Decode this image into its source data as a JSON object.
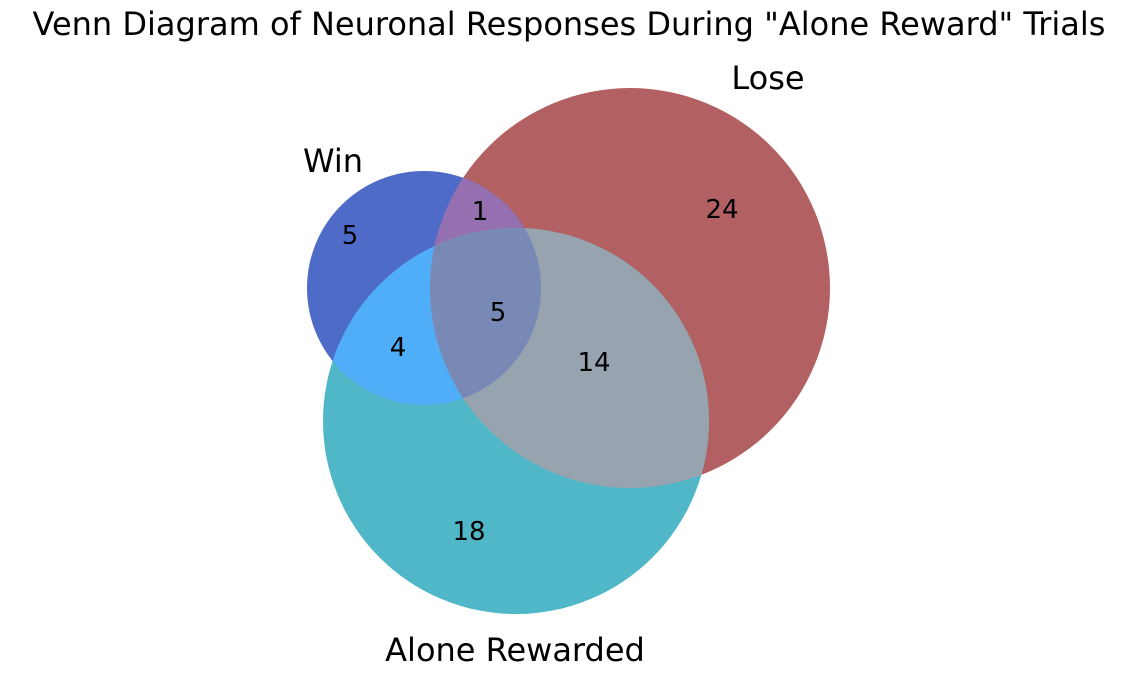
{
  "title": "Venn Diagram of Neuronal Responses During \"Alone Reward\" Trials",
  "sets": {
    "win": {
      "label": "Win",
      "color": "#4f6bc8"
    },
    "lose": {
      "label": "Lose",
      "color": "#b26061"
    },
    "alone": {
      "label": "Alone Rewarded",
      "color": "#50b7c8"
    }
  },
  "region_colors": {
    "win_lose": "#9570b0",
    "win_alone": "#50adf7",
    "lose_alone": "#97a4b0",
    "all": "#7989b6"
  },
  "regions": {
    "win_only": "5",
    "win_lose": "1",
    "lose_only": "24",
    "all": "5",
    "win_alone": "4",
    "lose_alone": "14",
    "alone_only": "18"
  }
}
